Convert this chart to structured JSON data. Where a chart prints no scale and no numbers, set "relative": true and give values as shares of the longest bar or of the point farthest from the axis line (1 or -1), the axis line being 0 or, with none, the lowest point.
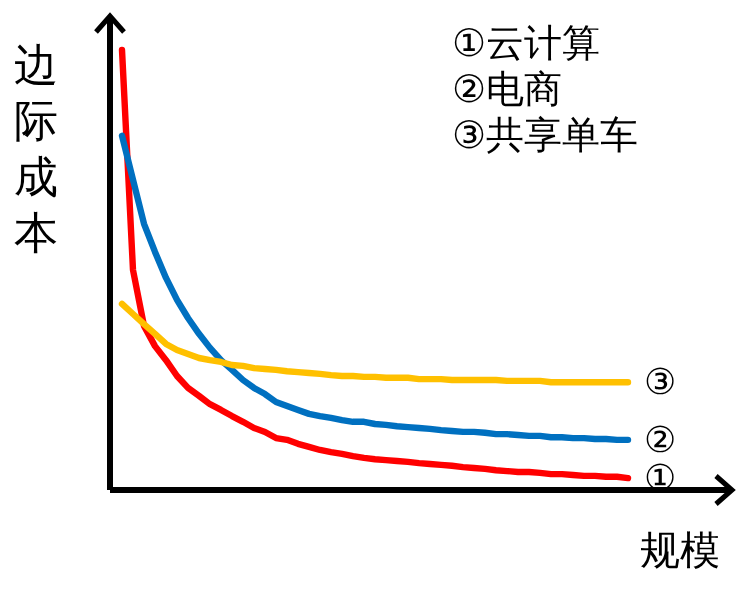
{
  "chart_data": {
    "type": "line",
    "relative": true,
    "ylabel": "边际成本",
    "xlabel": "规模",
    "annotations": [
      "①云计算",
      "②电商",
      "③共享单车"
    ],
    "categories": [
      null,
      null,
      null,
      null,
      null,
      null,
      null,
      null,
      null,
      null,
      null,
      null,
      null,
      null,
      null,
      null,
      null,
      null,
      null,
      null,
      null,
      null,
      null,
      null,
      null,
      null,
      null,
      null,
      null,
      null,
      null,
      null,
      null,
      null,
      null,
      null,
      null,
      null,
      null,
      null,
      null,
      null,
      null,
      null,
      null,
      null,
      null
    ],
    "series": [
      {
        "name": "①",
        "color": "#ff0000",
        "values": [
          1,
          0.5,
          0.373,
          0.327,
          0.295,
          0.259,
          0.232,
          0.214,
          0.195,
          0.182,
          0.168,
          0.155,
          0.141,
          0.132,
          0.118,
          0.114,
          0.105,
          0.098,
          0.091,
          0.086,
          0.082,
          0.077,
          0.073,
          0.07,
          0.068,
          0.066,
          0.064,
          0.061,
          0.059,
          0.057,
          0.055,
          0.052,
          0.05,
          0.048,
          0.045,
          0.043,
          0.041,
          0.041,
          0.039,
          0.036,
          0.036,
          0.034,
          0.032,
          0.032,
          0.03,
          0.03,
          0.027
        ]
      },
      {
        "name": "②",
        "color": "#0070c0",
        "values": [
          0.805,
          0.705,
          0.605,
          0.541,
          0.482,
          0.432,
          0.391,
          0.355,
          0.323,
          0.295,
          0.273,
          0.25,
          0.232,
          0.218,
          0.2,
          0.191,
          0.182,
          0.173,
          0.168,
          0.164,
          0.159,
          0.155,
          0.155,
          0.15,
          0.148,
          0.145,
          0.143,
          0.141,
          0.139,
          0.136,
          0.134,
          0.132,
          0.132,
          0.13,
          0.127,
          0.127,
          0.125,
          0.123,
          0.123,
          0.12,
          0.12,
          0.118,
          0.118,
          0.116,
          0.116,
          0.114,
          0.114
        ]
      },
      {
        "name": "③",
        "color": "#ffc000",
        "values": [
          0.423,
          0.4,
          0.377,
          0.355,
          0.332,
          0.318,
          0.309,
          0.3,
          0.295,
          0.291,
          0.284,
          0.282,
          0.277,
          0.275,
          0.273,
          0.27,
          0.268,
          0.266,
          0.264,
          0.261,
          0.259,
          0.259,
          0.257,
          0.257,
          0.255,
          0.255,
          0.255,
          0.252,
          0.252,
          0.252,
          0.25,
          0.25,
          0.25,
          0.25,
          0.25,
          0.248,
          0.248,
          0.248,
          0.248,
          0.245,
          0.245,
          0.245,
          0.245,
          0.245,
          0.245,
          0.245,
          0.245
        ]
      }
    ]
  }
}
